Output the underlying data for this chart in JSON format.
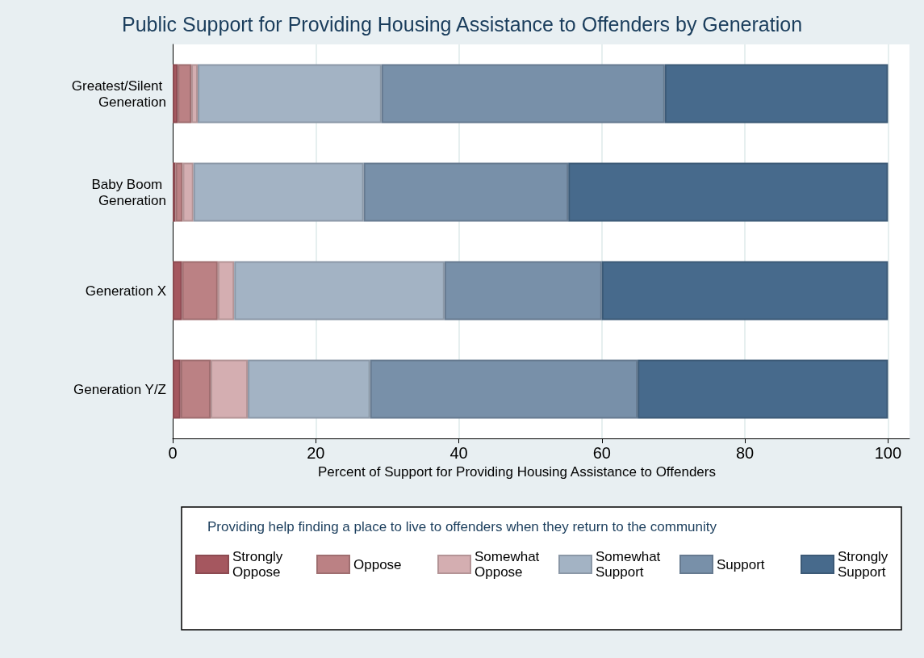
{
  "chart_data": {
    "type": "bar",
    "orientation": "horizontal",
    "stacked": true,
    "title": "Public Support for Providing Housing Assistance to Offenders by Generation",
    "xlabel": "Percent of Support for Providing Housing Assistance to Offenders",
    "legend_title": "Providing help finding a place to live to offenders when they return to the community",
    "categories": [
      "Greatest/Silent Generation",
      "Baby Boom Generation",
      "Generation X",
      "Generation Y/Z"
    ],
    "series": [
      {
        "name": "Strongly Oppose",
        "color": "#a5575f",
        "values": [
          0.7,
          0.4,
          1.3,
          1.1
        ]
      },
      {
        "name": "Oppose",
        "color": "#bb8184",
        "values": [
          1.9,
          1.0,
          5.0,
          4.2
        ]
      },
      {
        "name": "Somewhat Oppose",
        "color": "#d4aeb1",
        "values": [
          0.9,
          1.5,
          2.3,
          5.2
        ]
      },
      {
        "name": "Somewhat Support",
        "color": "#a3b3c4",
        "values": [
          25.7,
          23.8,
          29.4,
          17.1
        ]
      },
      {
        "name": "Support",
        "color": "#7890a9",
        "values": [
          39.6,
          28.6,
          22.0,
          37.4
        ]
      },
      {
        "name": "Strongly Support",
        "color": "#476a8c",
        "values": [
          31.2,
          44.7,
          40.0,
          35.0
        ]
      }
    ],
    "xlim": [
      0,
      103
    ],
    "xticks": [
      0,
      20,
      40,
      60,
      80,
      100
    ],
    "grid": "x",
    "legend": "bottom"
  }
}
